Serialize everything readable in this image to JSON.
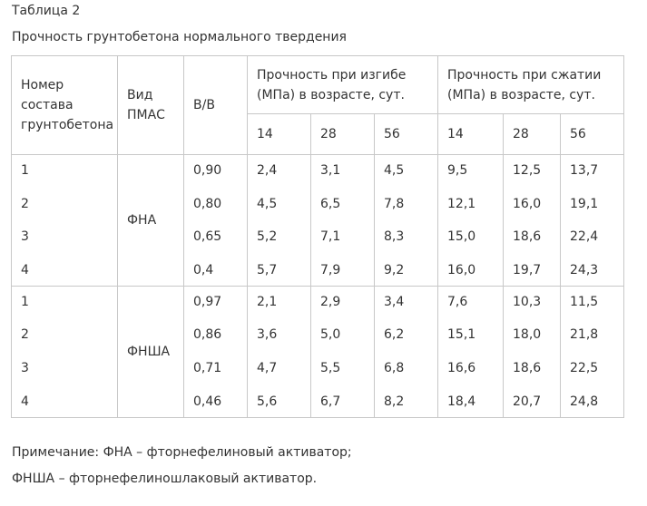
{
  "table_label": "Таблица 2",
  "title": "Прочность грунтобетона нормального твердения",
  "headers": {
    "composition": "Номер состава грунтобетона",
    "pmas_type": "Вид ПМАС",
    "wc": "В/В",
    "bending": "Прочность при изгибе (МПа) в возрасте, сут.",
    "compression": "Прочность при сжатии (МПа) в возрасте, сут.",
    "ages": [
      "14",
      "28",
      "56"
    ]
  },
  "groups": [
    {
      "pmas": "ФНА",
      "numbers": [
        "1",
        "2",
        "3",
        "4"
      ],
      "wc": [
        "0,90",
        "0,80",
        "0,65",
        "0,4"
      ],
      "bend_14": [
        "2,4",
        "4,5",
        "5,2",
        "5,7"
      ],
      "bend_28": [
        "3,1",
        "6,5",
        "7,1",
        "7,9"
      ],
      "bend_56": [
        "4,5",
        "7,8",
        "8,3",
        "9,2"
      ],
      "comp_14": [
        "9,5",
        "12,1",
        "15,0",
        "16,0"
      ],
      "comp_28": [
        "12,5",
        "16,0",
        "18,6",
        "19,7"
      ],
      "comp_56": [
        "13,7",
        "19,1",
        "22,4",
        "24,3"
      ]
    },
    {
      "pmas": "ФНША",
      "numbers": [
        "1",
        "2",
        "3",
        "4"
      ],
      "wc": [
        "0,97",
        "0,86",
        "0,71",
        "0,46"
      ],
      "bend_14": [
        "2,1",
        "3,6",
        "4,7",
        "5,6"
      ],
      "bend_28": [
        "2,9",
        "5,0",
        "5,5",
        "6,7"
      ],
      "bend_56": [
        "3,4",
        "6,2",
        "6,8",
        "8,2"
      ],
      "comp_14": [
        "7,6",
        "15,1",
        "16,6",
        "18,4"
      ],
      "comp_28": [
        "10,3",
        "18,0",
        "18,6",
        "20,7"
      ],
      "comp_56": [
        "11,5",
        "21,8",
        "22,5",
        "24,8"
      ]
    }
  ],
  "notes": [
    "Примечание: ФНА – фторнефелиновый активатор;",
    "ФНША – фторнефелиношлаковый активатор."
  ]
}
